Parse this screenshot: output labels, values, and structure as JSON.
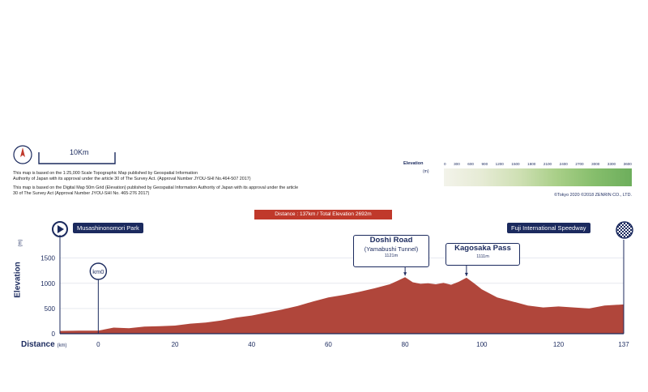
{
  "map_info": {
    "scale_label": "10Km",
    "notes": [
      "This map is based on the 1:25,000 Scale Topographic Map published by Geospatial Information",
      "Authority of Japan with its approval under the article 30 of The Survey Act. (Approval Number JYOU-SHI No.464-507 2017)",
      "This map is based on the Digital Map 50m Grid (Elevation) published by Geospatial Information Authority of Japan with its approval under the article",
      "30 of The Survey Act (Approval Number JYOU-SHI No. 465-276 2017)"
    ],
    "copyright": "©Tokyo 2020 ©2018 ZENRIN CO., LTD."
  },
  "elevation_legend": {
    "title": "Elevation",
    "unit": "(m)",
    "ticks": [
      "0",
      "300",
      "600",
      "900",
      "1200",
      "1500",
      "1800",
      "2100",
      "2400",
      "2700",
      "3000",
      "3300",
      "3600"
    ],
    "colors": [
      "#f3f3ea",
      "#6dae5c"
    ]
  },
  "route": {
    "distance_badge": "Distance : 137km / Total Elevation 2692m",
    "start": "Musashinonomori Park",
    "finish": "Fuji International Speedway",
    "km0": "km0"
  },
  "peaks": [
    {
      "name": "Doshi Road",
      "sub": "(Yamabushi Tunnel)",
      "height": "1121m",
      "km": 80,
      "elev": 1121
    },
    {
      "name": "Kagosaka Pass",
      "sub": "",
      "height": "1111m",
      "km": 96,
      "elev": 1111
    }
  ],
  "chart_data": {
    "type": "area",
    "xlabel": "Distance",
    "xunit": "(km)",
    "ylabel": "Elevation",
    "yunit": "(m)",
    "x_ticks": [
      "0",
      "20",
      "40",
      "60",
      "80",
      "100",
      "120",
      "137"
    ],
    "y_ticks": [
      "0",
      "500",
      "1000",
      "1500"
    ],
    "ylim": [
      0,
      1800
    ],
    "xlim": [
      -10,
      137
    ],
    "fill_color": "#b0463b",
    "x": [
      -10,
      -5,
      0,
      4,
      8,
      12,
      16,
      20,
      24,
      28,
      32,
      36,
      40,
      44,
      48,
      52,
      56,
      60,
      64,
      68,
      72,
      76,
      78,
      80,
      82,
      84,
      86,
      88,
      90,
      92,
      94,
      96,
      98,
      100,
      104,
      108,
      112,
      116,
      120,
      124,
      128,
      132,
      137
    ],
    "y": [
      55,
      60,
      60,
      120,
      110,
      140,
      150,
      160,
      200,
      220,
      260,
      320,
      360,
      420,
      480,
      550,
      640,
      720,
      770,
      830,
      900,
      980,
      1050,
      1121,
      1020,
      990,
      1000,
      980,
      1010,
      970,
      1030,
      1111,
      1000,
      880,
      720,
      640,
      560,
      520,
      540,
      520,
      500,
      560,
      580
    ]
  }
}
